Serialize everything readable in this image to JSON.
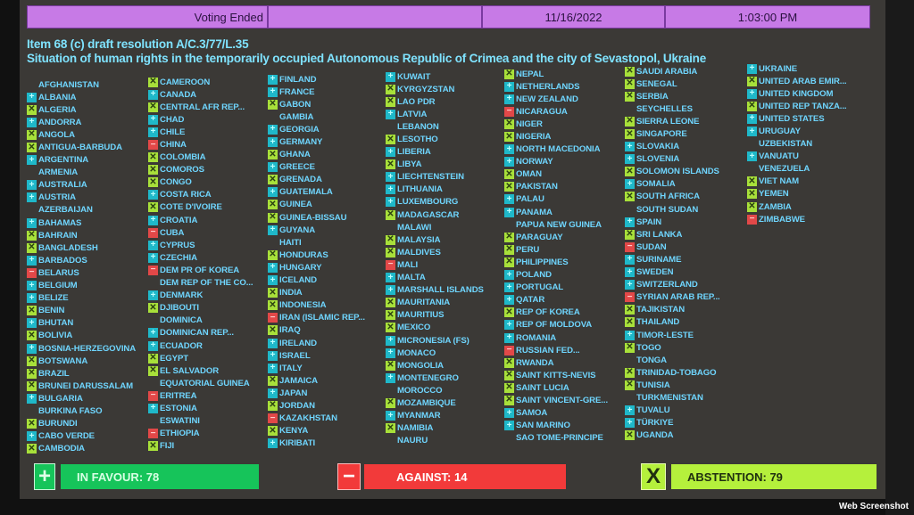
{
  "header": {
    "status": "Voting Ended",
    "date": "11/16/2022",
    "time": "1:03:00 PM"
  },
  "title": {
    "line1": "Item 68 (c) draft resolution A/C.3/77/L.35",
    "line2": "Situation of human rights in the temporarily occupied Autonomous Republic of Crimea and the city of Sevastopol, Ukraine"
  },
  "vote_legend": {
    "Y": "plus-icon",
    "N": "minus-icon",
    "A": "x-icon"
  },
  "colors": {
    "favour": "#16c45a",
    "against": "#f23a3a",
    "abstention": "#b5f03c",
    "header": "#c77ae6",
    "text": "#6fd6ff"
  },
  "columns": [
    [
      {
        "name": "AFGHANISTAN",
        "vote": ""
      },
      {
        "name": "ALBANIA",
        "vote": "Y"
      },
      {
        "name": "ALGERIA",
        "vote": "A"
      },
      {
        "name": "ANDORRA",
        "vote": "Y"
      },
      {
        "name": "ANGOLA",
        "vote": "A"
      },
      {
        "name": "ANTIGUA-BARBUDA",
        "vote": "A"
      },
      {
        "name": "ARGENTINA",
        "vote": "Y"
      },
      {
        "name": "ARMENIA",
        "vote": ""
      },
      {
        "name": "AUSTRALIA",
        "vote": "Y"
      },
      {
        "name": "AUSTRIA",
        "vote": "Y"
      },
      {
        "name": "AZERBAIJAN",
        "vote": ""
      },
      {
        "name": "BAHAMAS",
        "vote": "Y"
      },
      {
        "name": "BAHRAIN",
        "vote": "A"
      },
      {
        "name": "BANGLADESH",
        "vote": "A"
      },
      {
        "name": "BARBADOS",
        "vote": "Y"
      },
      {
        "name": "BELARUS",
        "vote": "N"
      },
      {
        "name": "BELGIUM",
        "vote": "Y"
      },
      {
        "name": "BELIZE",
        "vote": "Y"
      },
      {
        "name": "BENIN",
        "vote": "A"
      },
      {
        "name": "BHUTAN",
        "vote": "Y"
      },
      {
        "name": "BOLIVIA",
        "vote": "A"
      },
      {
        "name": "BOSNIA-HERZEGOVINA",
        "vote": "Y"
      },
      {
        "name": "BOTSWANA",
        "vote": "A"
      },
      {
        "name": "BRAZIL",
        "vote": "A"
      },
      {
        "name": "BRUNEI DARUSSALAM",
        "vote": "A"
      },
      {
        "name": "BULGARIA",
        "vote": "Y"
      },
      {
        "name": "BURKINA FASO",
        "vote": ""
      },
      {
        "name": "BURUNDI",
        "vote": "A"
      },
      {
        "name": "CABO VERDE",
        "vote": "Y"
      },
      {
        "name": "CAMBODIA",
        "vote": "A"
      }
    ],
    [
      {
        "name": "CAMEROON",
        "vote": "A"
      },
      {
        "name": "CANADA",
        "vote": "Y"
      },
      {
        "name": "CENTRAL AFR REP...",
        "vote": "A"
      },
      {
        "name": "CHAD",
        "vote": "Y"
      },
      {
        "name": "CHILE",
        "vote": "Y"
      },
      {
        "name": "CHINA",
        "vote": "N"
      },
      {
        "name": "COLOMBIA",
        "vote": "A"
      },
      {
        "name": "COMOROS",
        "vote": "A"
      },
      {
        "name": "CONGO",
        "vote": "A"
      },
      {
        "name": "COSTA RICA",
        "vote": "Y"
      },
      {
        "name": "COTE D'IVOIRE",
        "vote": "A"
      },
      {
        "name": "CROATIA",
        "vote": "Y"
      },
      {
        "name": "CUBA",
        "vote": "N"
      },
      {
        "name": "CYPRUS",
        "vote": "Y"
      },
      {
        "name": "CZECHIA",
        "vote": "Y"
      },
      {
        "name": "DEM PR OF KOREA",
        "vote": "N"
      },
      {
        "name": "DEM REP OF THE CO...",
        "vote": ""
      },
      {
        "name": "DENMARK",
        "vote": "Y"
      },
      {
        "name": "DJIBOUTI",
        "vote": "A"
      },
      {
        "name": "DOMINICA",
        "vote": ""
      },
      {
        "name": "DOMINICAN REP...",
        "vote": "Y"
      },
      {
        "name": "ECUADOR",
        "vote": "Y"
      },
      {
        "name": "EGYPT",
        "vote": "A"
      },
      {
        "name": "EL SALVADOR",
        "vote": "A"
      },
      {
        "name": "EQUATORIAL GUINEA",
        "vote": ""
      },
      {
        "name": "ERITREA",
        "vote": "N"
      },
      {
        "name": "ESTONIA",
        "vote": "Y"
      },
      {
        "name": "ESWATINI",
        "vote": ""
      },
      {
        "name": "ETHIOPIA",
        "vote": "N"
      },
      {
        "name": "FIJI",
        "vote": "A"
      }
    ],
    [
      {
        "name": "FINLAND",
        "vote": "Y"
      },
      {
        "name": "FRANCE",
        "vote": "Y"
      },
      {
        "name": "GABON",
        "vote": "A"
      },
      {
        "name": "GAMBIA",
        "vote": ""
      },
      {
        "name": "GEORGIA",
        "vote": "Y"
      },
      {
        "name": "GERMANY",
        "vote": "Y"
      },
      {
        "name": "GHANA",
        "vote": "A"
      },
      {
        "name": "GREECE",
        "vote": "Y"
      },
      {
        "name": "GRENADA",
        "vote": "A"
      },
      {
        "name": "GUATEMALA",
        "vote": "Y"
      },
      {
        "name": "GUINEA",
        "vote": "A"
      },
      {
        "name": "GUINEA-BISSAU",
        "vote": "A"
      },
      {
        "name": "GUYANA",
        "vote": "Y"
      },
      {
        "name": "HAITI",
        "vote": ""
      },
      {
        "name": "HONDURAS",
        "vote": "A"
      },
      {
        "name": "HUNGARY",
        "vote": "Y"
      },
      {
        "name": "ICELAND",
        "vote": "Y"
      },
      {
        "name": "INDIA",
        "vote": "A"
      },
      {
        "name": "INDONESIA",
        "vote": "A"
      },
      {
        "name": "IRAN (ISLAMIC REP...",
        "vote": "N"
      },
      {
        "name": "IRAQ",
        "vote": "A"
      },
      {
        "name": "IRELAND",
        "vote": "Y"
      },
      {
        "name": "ISRAEL",
        "vote": "Y"
      },
      {
        "name": "ITALY",
        "vote": "Y"
      },
      {
        "name": "JAMAICA",
        "vote": "A"
      },
      {
        "name": "JAPAN",
        "vote": "Y"
      },
      {
        "name": "JORDAN",
        "vote": "A"
      },
      {
        "name": "KAZAKHSTAN",
        "vote": "N"
      },
      {
        "name": "KENYA",
        "vote": "A"
      },
      {
        "name": "KIRIBATI",
        "vote": "Y"
      }
    ],
    [
      {
        "name": "KUWAIT",
        "vote": "Y"
      },
      {
        "name": "KYRGYZSTAN",
        "vote": "A"
      },
      {
        "name": "LAO PDR",
        "vote": "A"
      },
      {
        "name": "LATVIA",
        "vote": "Y"
      },
      {
        "name": "LEBANON",
        "vote": ""
      },
      {
        "name": "LESOTHO",
        "vote": "A"
      },
      {
        "name": "LIBERIA",
        "vote": "Y"
      },
      {
        "name": "LIBYA",
        "vote": "A"
      },
      {
        "name": "LIECHTENSTEIN",
        "vote": "Y"
      },
      {
        "name": "LITHUANIA",
        "vote": "Y"
      },
      {
        "name": "LUXEMBOURG",
        "vote": "Y"
      },
      {
        "name": "MADAGASCAR",
        "vote": "A"
      },
      {
        "name": "MALAWI",
        "vote": ""
      },
      {
        "name": "MALAYSIA",
        "vote": "A"
      },
      {
        "name": "MALDIVES",
        "vote": "A"
      },
      {
        "name": "MALI",
        "vote": "N"
      },
      {
        "name": "MALTA",
        "vote": "Y"
      },
      {
        "name": "MARSHALL ISLANDS",
        "vote": "Y"
      },
      {
        "name": "MAURITANIA",
        "vote": "A"
      },
      {
        "name": "MAURITIUS",
        "vote": "A"
      },
      {
        "name": "MEXICO",
        "vote": "A"
      },
      {
        "name": "MICRONESIA (FS)",
        "vote": "Y"
      },
      {
        "name": "MONACO",
        "vote": "Y"
      },
      {
        "name": "MONGOLIA",
        "vote": "A"
      },
      {
        "name": "MONTENEGRO",
        "vote": "Y"
      },
      {
        "name": "MOROCCO",
        "vote": ""
      },
      {
        "name": "MOZAMBIQUE",
        "vote": "A"
      },
      {
        "name": "MYANMAR",
        "vote": "Y"
      },
      {
        "name": "NAMIBIA",
        "vote": "A"
      },
      {
        "name": "NAURU",
        "vote": ""
      }
    ],
    [
      {
        "name": "NEPAL",
        "vote": "A"
      },
      {
        "name": "NETHERLANDS",
        "vote": "Y"
      },
      {
        "name": "NEW ZEALAND",
        "vote": "Y"
      },
      {
        "name": "NICARAGUA",
        "vote": "N"
      },
      {
        "name": "NIGER",
        "vote": "A"
      },
      {
        "name": "NIGERIA",
        "vote": "A"
      },
      {
        "name": "NORTH MACEDONIA",
        "vote": "Y"
      },
      {
        "name": "NORWAY",
        "vote": "Y"
      },
      {
        "name": "OMAN",
        "vote": "A"
      },
      {
        "name": "PAKISTAN",
        "vote": "A"
      },
      {
        "name": "PALAU",
        "vote": "Y"
      },
      {
        "name": "PANAMA",
        "vote": "Y"
      },
      {
        "name": "PAPUA NEW GUINEA",
        "vote": ""
      },
      {
        "name": "PARAGUAY",
        "vote": "A"
      },
      {
        "name": "PERU",
        "vote": "A"
      },
      {
        "name": "PHILIPPINES",
        "vote": "A"
      },
      {
        "name": "POLAND",
        "vote": "Y"
      },
      {
        "name": "PORTUGAL",
        "vote": "Y"
      },
      {
        "name": "QATAR",
        "vote": "Y"
      },
      {
        "name": "REP OF KOREA",
        "vote": "A"
      },
      {
        "name": "REP OF MOLDOVA",
        "vote": "Y"
      },
      {
        "name": "ROMANIA",
        "vote": "Y"
      },
      {
        "name": "RUSSIAN FED...",
        "vote": "N"
      },
      {
        "name": "RWANDA",
        "vote": "A"
      },
      {
        "name": "SAINT KITTS-NEVIS",
        "vote": "A"
      },
      {
        "name": "SAINT LUCIA",
        "vote": "A"
      },
      {
        "name": "SAINT VINCENT-GRE...",
        "vote": "A"
      },
      {
        "name": "SAMOA",
        "vote": "Y"
      },
      {
        "name": "SAN MARINO",
        "vote": "Y"
      },
      {
        "name": "SAO TOME-PRINCIPE",
        "vote": ""
      }
    ],
    [
      {
        "name": "SAUDI ARABIA",
        "vote": "A"
      },
      {
        "name": "SENEGAL",
        "vote": "A"
      },
      {
        "name": "SERBIA",
        "vote": "A"
      },
      {
        "name": "SEYCHELLES",
        "vote": ""
      },
      {
        "name": "SIERRA LEONE",
        "vote": "A"
      },
      {
        "name": "SINGAPORE",
        "vote": "A"
      },
      {
        "name": "SLOVAKIA",
        "vote": "Y"
      },
      {
        "name": "SLOVENIA",
        "vote": "Y"
      },
      {
        "name": "SOLOMON ISLANDS",
        "vote": "A"
      },
      {
        "name": "SOMALIA",
        "vote": "Y"
      },
      {
        "name": "SOUTH AFRICA",
        "vote": "A"
      },
      {
        "name": "SOUTH SUDAN",
        "vote": ""
      },
      {
        "name": "SPAIN",
        "vote": "Y"
      },
      {
        "name": "SRI LANKA",
        "vote": "A"
      },
      {
        "name": "SUDAN",
        "vote": "N"
      },
      {
        "name": "SURINAME",
        "vote": "Y"
      },
      {
        "name": "SWEDEN",
        "vote": "Y"
      },
      {
        "name": "SWITZERLAND",
        "vote": "Y"
      },
      {
        "name": "SYRIAN ARAB REP...",
        "vote": "N"
      },
      {
        "name": "TAJIKISTAN",
        "vote": "A"
      },
      {
        "name": "THAILAND",
        "vote": "A"
      },
      {
        "name": "TIMOR-LESTE",
        "vote": "Y"
      },
      {
        "name": "TOGO",
        "vote": "A"
      },
      {
        "name": "TONGA",
        "vote": ""
      },
      {
        "name": "TRINIDAD-TOBAGO",
        "vote": "A"
      },
      {
        "name": "TUNISIA",
        "vote": "A"
      },
      {
        "name": "TURKMENISTAN",
        "vote": ""
      },
      {
        "name": "TUVALU",
        "vote": "Y"
      },
      {
        "name": "TÜRKIYE",
        "vote": "Y"
      },
      {
        "name": "UGANDA",
        "vote": "A"
      }
    ],
    [
      {
        "name": "UKRAINE",
        "vote": "Y"
      },
      {
        "name": "UNITED ARAB EMIR...",
        "vote": "A"
      },
      {
        "name": "UNITED KINGDOM",
        "vote": "Y"
      },
      {
        "name": "UNITED REP TANZA...",
        "vote": "A"
      },
      {
        "name": "UNITED STATES",
        "vote": "Y"
      },
      {
        "name": "URUGUAY",
        "vote": "Y"
      },
      {
        "name": "UZBEKISTAN",
        "vote": ""
      },
      {
        "name": "VANUATU",
        "vote": "Y"
      },
      {
        "name": "VENEZUELA",
        "vote": ""
      },
      {
        "name": "VIET NAM",
        "vote": "A"
      },
      {
        "name": "YEMEN",
        "vote": "A"
      },
      {
        "name": "ZAMBIA",
        "vote": "A"
      },
      {
        "name": "ZIMBABWE",
        "vote": "N"
      }
    ]
  ],
  "summary": {
    "favour": "IN FAVOUR: 78",
    "against": "AGAINST: 14",
    "abstention": "ABSTENTION: 79",
    "favour_icon": "+",
    "against_icon": "−",
    "abstention_icon": "X"
  },
  "watermark": "Web Screenshot"
}
